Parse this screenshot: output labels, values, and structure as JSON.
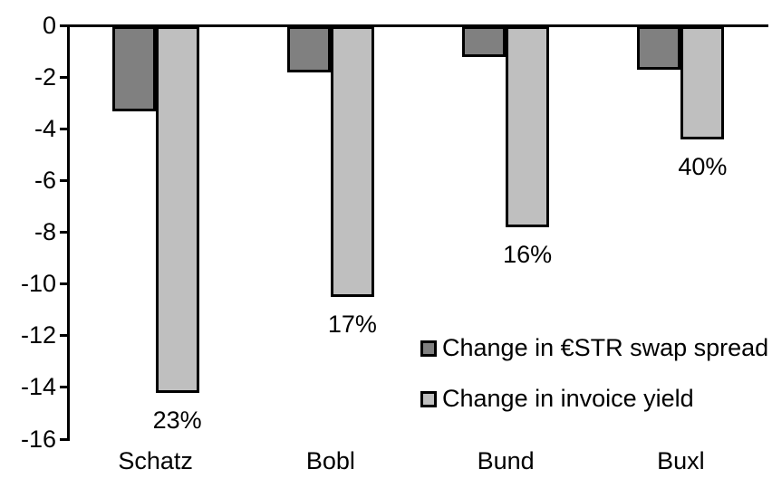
{
  "chart_data": {
    "type": "bar",
    "orientation": "vertical",
    "title": "",
    "xlabel": "",
    "ylabel": "",
    "categories": [
      "Schatz",
      "Bobl",
      "Bund",
      "Buxl"
    ],
    "series": [
      {
        "name": "Change in €STR swap spread",
        "color": "#808080",
        "values": [
          -3.3,
          -1.8,
          -1.2,
          -1.7
        ]
      },
      {
        "name": "Change in invoice yield",
        "color": "#BFBFBF",
        "values": [
          -14.2,
          -10.5,
          -7.8,
          -4.4
        ],
        "point_labels": [
          "23%",
          "17%",
          "16%",
          "40%"
        ]
      }
    ],
    "ylim": [
      -16,
      0
    ],
    "yticks": [
      0,
      -2,
      -4,
      -6,
      -8,
      -10,
      -12,
      -14,
      -16
    ],
    "grid": false,
    "legend_position": "inside-middle-right",
    "axis_color": "#000000",
    "background_color": "#FFFFFF"
  }
}
